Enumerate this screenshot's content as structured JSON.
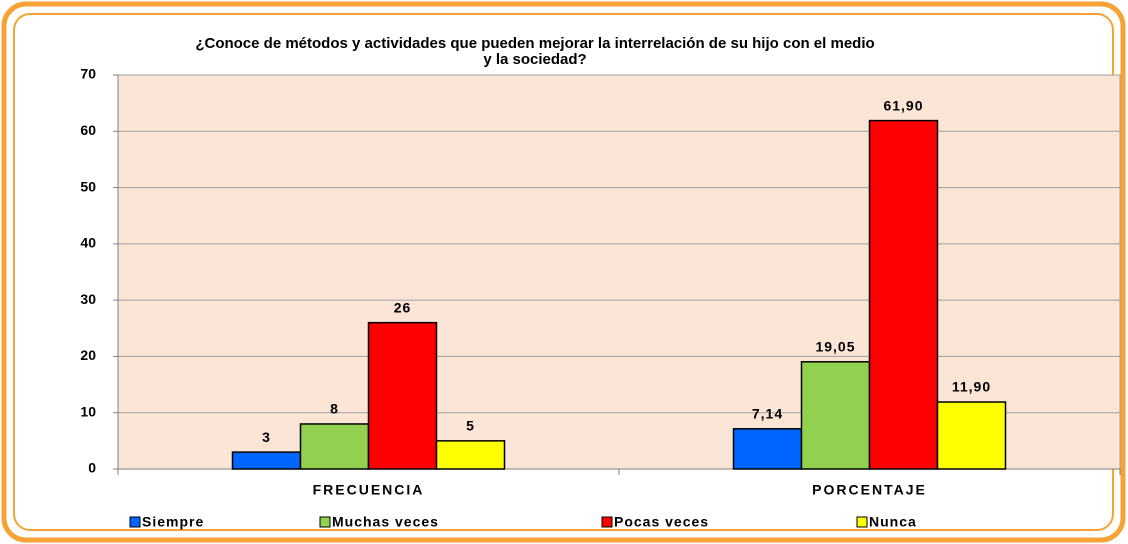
{
  "chart_data": {
    "type": "bar",
    "title": "¿Conoce de métodos y actividades que pueden mejorar la interrelación de su hijo con el  medio y la sociedad?",
    "categories": [
      "FRECUENCIA",
      "PORCENTAJE"
    ],
    "series": [
      {
        "name": "Siempre",
        "color": "#0066ff",
        "values": [
          3,
          7.14
        ],
        "value_labels": [
          "3",
          "7,14"
        ]
      },
      {
        "name": "Muchas veces",
        "color": "#92d050",
        "values": [
          8,
          19.05
        ],
        "value_labels": [
          "8",
          "19,05"
        ]
      },
      {
        "name": "Pocas veces",
        "color": "#ff0000",
        "values": [
          26,
          61.9
        ],
        "value_labels": [
          "26",
          "61,90"
        ]
      },
      {
        "name": "Nunca",
        "color": "#ffff00",
        "values": [
          5,
          11.9
        ],
        "value_labels": [
          "5",
          "11,90"
        ]
      }
    ],
    "ylim": [
      0,
      70
    ],
    "yticks": [
      0,
      10,
      20,
      30,
      40,
      50,
      60,
      70
    ],
    "grid": true,
    "legend": "bottom"
  }
}
